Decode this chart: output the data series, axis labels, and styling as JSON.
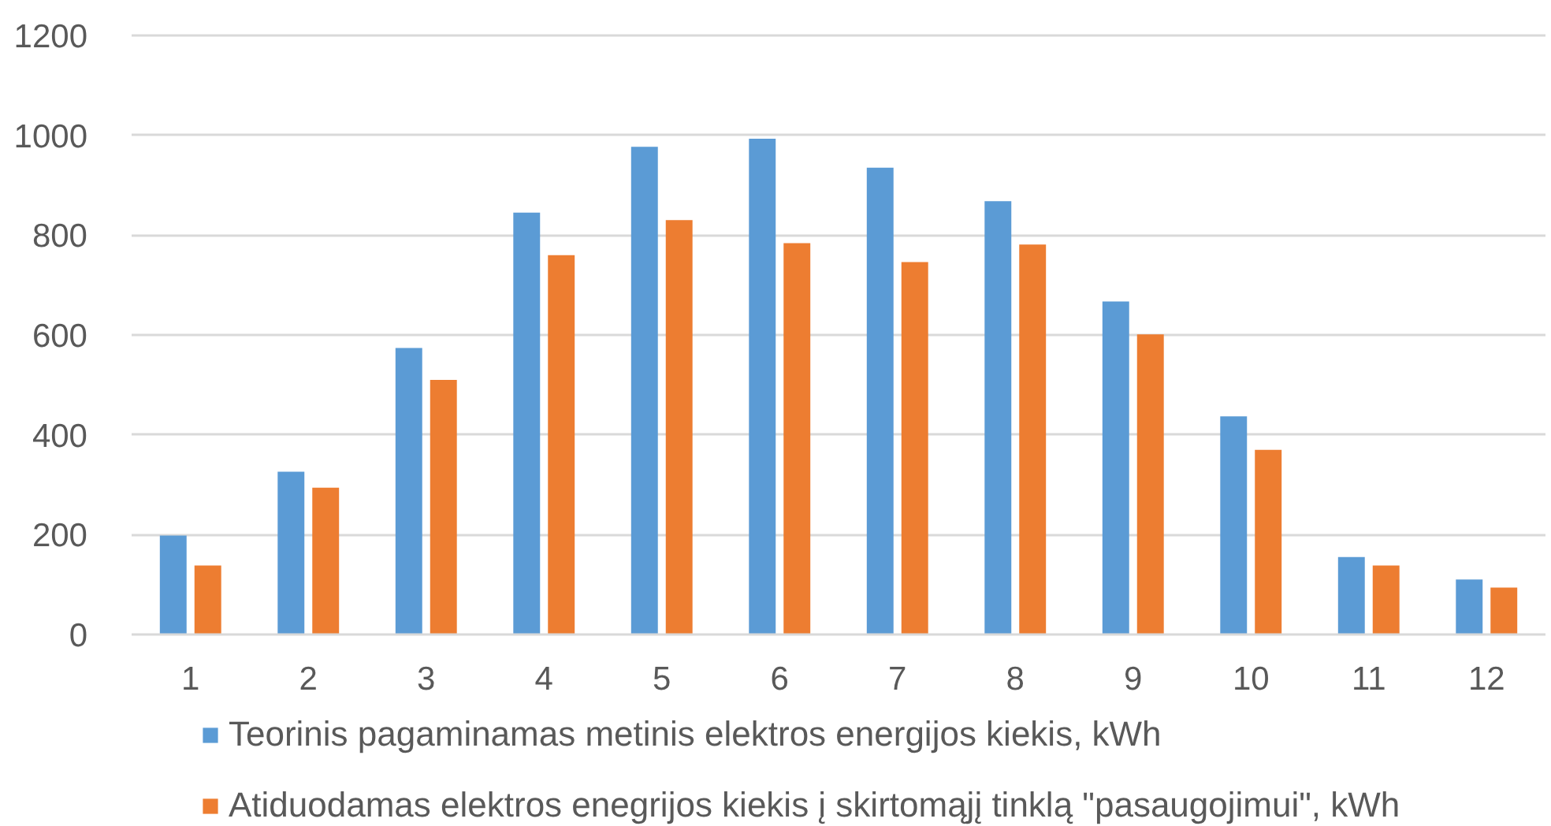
{
  "chart_data": {
    "type": "bar",
    "categories": [
      "1",
      "2",
      "3",
      "4",
      "5",
      "6",
      "7",
      "8",
      "9",
      "10",
      "11",
      "12"
    ],
    "series": [
      {
        "name": "Teorinis pagaminamas metinis elektros energijos kiekis, kWh",
        "color": "#5b9bd5",
        "values": [
          198,
          326,
          574,
          845,
          977,
          993,
          935,
          868,
          667,
          437,
          155,
          110
        ]
      },
      {
        "name": "Atiduodamas elektros enegrijos kiekis į skirtomąjį tinklą \"pasaugojimui\", kWh",
        "color": "#ed7d31",
        "values": [
          138,
          294,
          510,
          760,
          830,
          784,
          746,
          781,
          601,
          370,
          138,
          94
        ]
      }
    ],
    "ylim": [
      0,
      1200
    ],
    "yticks": [
      0,
      200,
      400,
      600,
      800,
      1000,
      1200
    ],
    "grid": "y",
    "legend": "bottom"
  }
}
